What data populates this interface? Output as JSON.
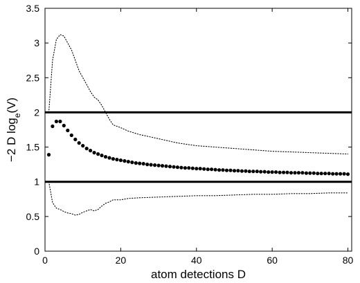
{
  "chart_data": {
    "type": "scatter",
    "title": "",
    "xlabel": "atom detections D",
    "ylabel": {
      "prefix": "−2 D log",
      "subscript": "e",
      "suffix": "(V)"
    },
    "xlim": [
      0,
      81
    ],
    "ylim": [
      0,
      3.5
    ],
    "xticks": [
      0,
      20,
      40,
      60,
      80
    ],
    "yticks": [
      0,
      0.5,
      1,
      1.5,
      2,
      2.5,
      3,
      3.5
    ],
    "grid": false,
    "legend": "none",
    "colors": {
      "points": "#000000",
      "bounds": "#000000",
      "reference_lines": "#000000"
    },
    "reference_lines": [
      1,
      2
    ],
    "series": [
      {
        "style": "markers",
        "x": [
          1,
          2,
          3,
          4,
          5,
          6,
          7,
          8,
          9,
          10,
          11,
          12,
          13,
          14,
          15,
          16,
          17,
          18,
          19,
          20,
          21,
          22,
          23,
          24,
          25,
          26,
          27,
          28,
          29,
          30,
          31,
          32,
          33,
          34,
          35,
          36,
          37,
          38,
          39,
          40,
          41,
          42,
          43,
          44,
          45,
          46,
          47,
          48,
          49,
          50,
          51,
          52,
          53,
          54,
          55,
          56,
          57,
          58,
          59,
          60,
          61,
          62,
          63,
          64,
          65,
          66,
          67,
          68,
          69,
          70,
          71,
          72,
          73,
          74,
          75,
          76,
          77,
          78,
          79,
          80
        ],
        "y": [
          1.39,
          1.8,
          1.87,
          1.87,
          1.81,
          1.74,
          1.67,
          1.61,
          1.56,
          1.52,
          1.48,
          1.45,
          1.42,
          1.4,
          1.38,
          1.36,
          1.345,
          1.33,
          1.32,
          1.31,
          1.3,
          1.29,
          1.28,
          1.27,
          1.265,
          1.26,
          1.25,
          1.245,
          1.24,
          1.235,
          1.23,
          1.225,
          1.22,
          1.215,
          1.21,
          1.205,
          1.2,
          1.2,
          1.195,
          1.19,
          1.19,
          1.185,
          1.18,
          1.18,
          1.175,
          1.17,
          1.17,
          1.165,
          1.165,
          1.16,
          1.16,
          1.155,
          1.155,
          1.15,
          1.15,
          1.15,
          1.145,
          1.145,
          1.14,
          1.14,
          1.14,
          1.135,
          1.135,
          1.135,
          1.13,
          1.13,
          1.13,
          1.13,
          1.125,
          1.125,
          1.125,
          1.12,
          1.12,
          1.12,
          1.12,
          1.115,
          1.115,
          1.115,
          1.115,
          1.11
        ]
      },
      {
        "style": "dotted",
        "x": [
          1,
          2,
          3,
          4,
          5,
          6,
          7,
          8,
          9,
          10,
          11,
          12,
          13,
          14,
          15,
          16,
          17,
          18,
          20,
          22,
          25,
          30,
          35,
          40,
          45,
          50,
          55,
          60,
          65,
          70,
          75,
          80
        ],
        "y": [
          2.0,
          2.75,
          3.05,
          3.12,
          3.1,
          3.0,
          2.9,
          2.75,
          2.6,
          2.5,
          2.4,
          2.3,
          2.22,
          2.18,
          2.1,
          2.0,
          1.9,
          1.82,
          1.78,
          1.73,
          1.68,
          1.62,
          1.56,
          1.52,
          1.5,
          1.48,
          1.46,
          1.44,
          1.43,
          1.42,
          1.41,
          1.4
        ]
      },
      {
        "style": "dotted",
        "x": [
          1,
          2,
          3,
          4,
          5,
          6,
          7,
          8,
          9,
          10,
          11,
          12,
          13,
          14,
          15,
          16,
          17,
          18,
          20,
          22,
          25,
          30,
          35,
          40,
          45,
          50,
          55,
          60,
          65,
          70,
          75,
          80
        ],
        "y": [
          1.0,
          0.7,
          0.62,
          0.6,
          0.57,
          0.55,
          0.54,
          0.52,
          0.53,
          0.56,
          0.58,
          0.6,
          0.58,
          0.6,
          0.65,
          0.69,
          0.71,
          0.74,
          0.74,
          0.76,
          0.77,
          0.78,
          0.79,
          0.8,
          0.8,
          0.81,
          0.82,
          0.82,
          0.83,
          0.83,
          0.84,
          0.84
        ]
      }
    ]
  }
}
